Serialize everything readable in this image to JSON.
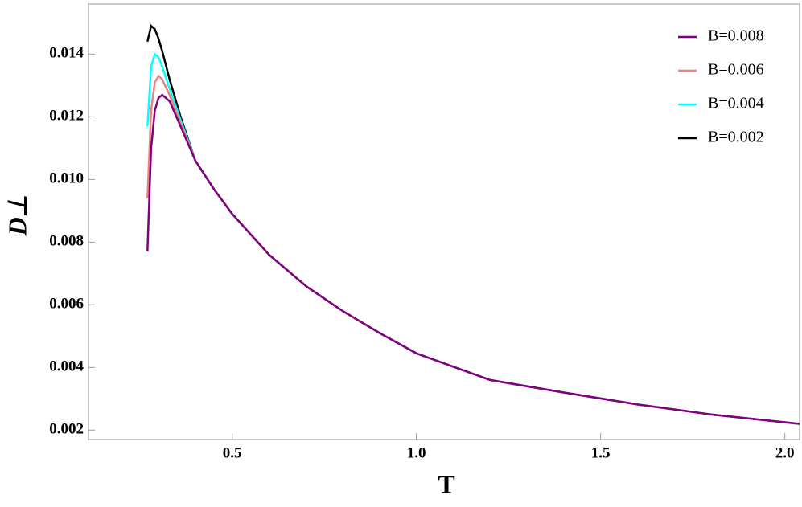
{
  "chart_data": {
    "type": "line",
    "xlabel": "T",
    "ylabel": "D⊥",
    "x": [
      0.27,
      0.28,
      0.29,
      0.3,
      0.31,
      0.33,
      0.36,
      0.4,
      0.45,
      0.5,
      0.6,
      0.7,
      0.8,
      0.9,
      1.0,
      1.2,
      1.4,
      1.6,
      1.8,
      2.04
    ],
    "series": [
      {
        "name": "B=0.008",
        "color": "#800080",
        "values": [
          0.0077,
          0.011,
          0.0122,
          0.0126,
          0.0127,
          0.0125,
          0.0117,
          0.0106,
          0.0097,
          0.0089,
          0.0076,
          0.0066,
          0.0058,
          0.0051,
          0.00445,
          0.0036,
          0.0032,
          0.00282,
          0.0025,
          0.0022
        ]
      },
      {
        "name": "B=0.006",
        "color": "#f08080",
        "values": [
          0.0094,
          0.0122,
          0.0131,
          0.0133,
          0.0132,
          0.0127,
          0.0118,
          0.0106,
          0.0097,
          0.0089,
          0.0076,
          0.0066,
          0.0058,
          0.0051,
          0.00445,
          0.0036,
          0.0032,
          0.00282,
          0.0025,
          0.0022
        ]
      },
      {
        "name": "B=0.004",
        "color": "#00ffff",
        "values": [
          0.0117,
          0.0136,
          0.014,
          0.0139,
          0.0136,
          0.0129,
          0.0119,
          0.0106,
          0.0097,
          0.0089,
          0.0076,
          0.0066,
          0.0058,
          0.0051,
          0.00445,
          0.0036,
          0.0032,
          0.00282,
          0.0025,
          0.0022
        ]
      },
      {
        "name": "B=0.002",
        "color": "#000000",
        "values": [
          0.0144,
          0.0149,
          0.0148,
          0.0145,
          0.0141,
          0.0132,
          0.012,
          0.0106,
          0.0097,
          0.0089,
          0.0076,
          0.0066,
          0.0058,
          0.0051,
          0.00445,
          0.0036,
          0.0032,
          0.00282,
          0.0025,
          0.0022
        ]
      }
    ],
    "xlim": [
      0.11,
      2.04
    ],
    "ylim": [
      0.0017,
      0.0156
    ],
    "xticks": [
      0.5,
      {
        "value": 1,
        "label": "1.0"
      },
      1.5,
      {
        "value": 2,
        "label": "2.0"
      }
    ],
    "yticks": [
      0.002,
      0.004,
      0.006,
      0.008,
      {
        "value": 0.01,
        "label": "0.010"
      },
      0.012,
      0.014
    ],
    "legend": "upper right"
  }
}
